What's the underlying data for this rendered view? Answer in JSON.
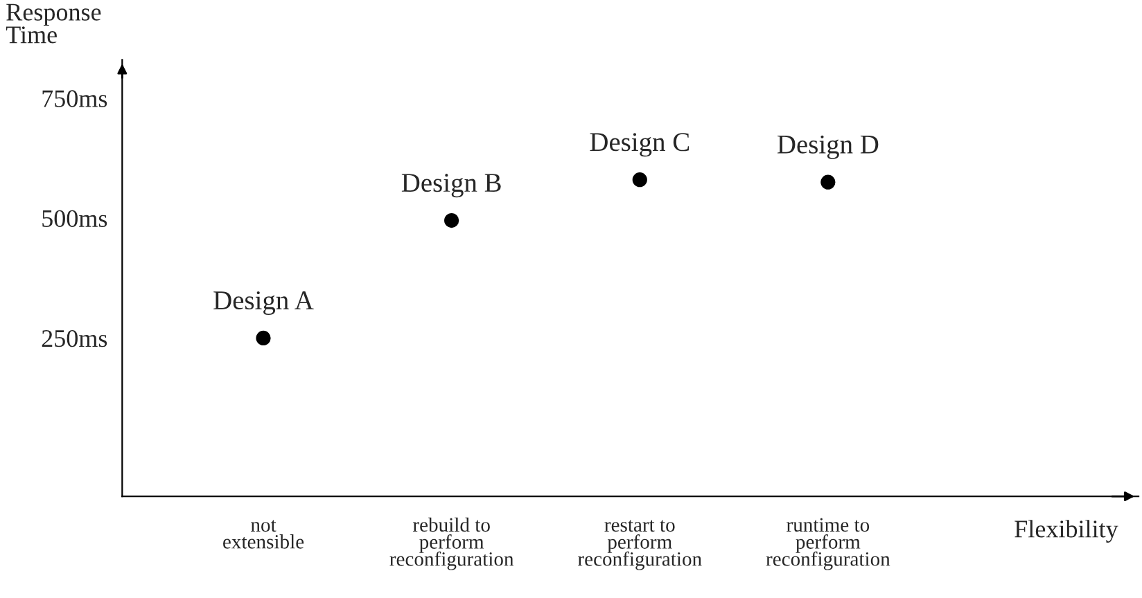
{
  "chart_data": {
    "type": "scatter",
    "categories": [
      "not\nextensible",
      "rebuild to\nperform\nreconfiguration",
      "restart to\nperform\nreconfiguration",
      "runtime to\nperform\nreconfiguration"
    ],
    "values": [
      250,
      495,
      580,
      575
    ],
    "color": "#000000",
    "marker": "circle",
    "xlabel": "Flexibility",
    "ylabel": "Response\nTime",
    "ylim": [
      -80,
      830
    ],
    "yticks": [
      {
        "value": 250,
        "label": "250ms"
      },
      {
        "value": 500,
        "label": "500ms"
      },
      {
        "value": 750,
        "label": "750ms"
      }
    ],
    "grid": false,
    "legend": false,
    "annotations": [
      {
        "text": "Design A",
        "x": "not\nextensible",
        "y": 250
      },
      {
        "text": "Design B",
        "x": "rebuild to\nperform\nreconfiguration",
        "y": 495
      },
      {
        "text": "Design C",
        "x": "restart to\nperform\nreconfiguration",
        "y": 580
      },
      {
        "text": "Design D",
        "x": "runtime to\nperform\nreconfiguration",
        "y": 575
      }
    ]
  }
}
